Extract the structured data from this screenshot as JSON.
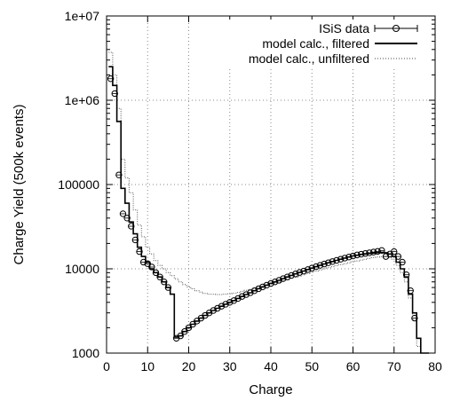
{
  "chart_data": {
    "type": "line",
    "xlabel": "Charge",
    "ylabel": "Charge Yield (500k events)",
    "xlim": [
      0,
      80
    ],
    "ylim": [
      1000,
      10000000
    ],
    "yscale": "log",
    "grid": true,
    "legend_position": "top-right",
    "x_ticks": [
      0,
      10,
      20,
      30,
      40,
      50,
      60,
      70,
      80
    ],
    "x_tick_labels": [
      "0",
      "10",
      "20",
      "30",
      "40",
      "50",
      "60",
      "70",
      "80"
    ],
    "y_ticks": [
      1000,
      10000,
      100000,
      1000000,
      10000000
    ],
    "y_tick_labels": [
      "1000",
      "10000",
      "100000",
      "1e+06",
      "1e+07"
    ],
    "series": [
      {
        "name": "ISiS data",
        "style": "points-errorbars",
        "x": [
          1,
          2,
          3,
          4,
          5,
          6,
          7,
          8,
          9,
          10,
          11,
          12,
          13,
          14,
          15,
          17,
          18,
          19,
          20,
          21,
          22,
          23,
          24,
          25,
          26,
          27,
          28,
          29,
          30,
          31,
          32,
          33,
          34,
          35,
          36,
          37,
          38,
          39,
          40,
          41,
          42,
          43,
          44,
          45,
          46,
          47,
          48,
          49,
          50,
          51,
          52,
          53,
          54,
          55,
          56,
          57,
          58,
          59,
          60,
          61,
          62,
          63,
          64,
          65,
          66,
          67,
          68,
          69,
          70,
          71,
          72,
          73,
          74,
          75
        ],
        "y": [
          1800000,
          1200000,
          130000,
          45000,
          40000,
          32000,
          22000,
          16000,
          12000,
          11500,
          10500,
          9000,
          8000,
          7000,
          6000,
          1500,
          1600,
          1800,
          2000,
          2200,
          2400,
          2600,
          2800,
          3000,
          3200,
          3400,
          3600,
          3800,
          4000,
          4200,
          4450,
          4700,
          4950,
          5200,
          5500,
          5800,
          6100,
          6400,
          6700,
          7000,
          7300,
          7650,
          8000,
          8350,
          8700,
          9050,
          9400,
          9800,
          10200,
          10600,
          11000,
          11400,
          11800,
          12200,
          12600,
          13000,
          13400,
          13800,
          14200,
          14600,
          14900,
          15200,
          15500,
          15800,
          16100,
          16500,
          14000,
          15000,
          16000,
          14000,
          12000,
          8500,
          5500,
          2600
        ]
      },
      {
        "name": "model calc., filtered",
        "style": "steps-solid",
        "x": [
          0.5,
          1.5,
          2.5,
          3.5,
          4.5,
          5.5,
          6.5,
          7.5,
          8.5,
          9.5,
          10.5,
          11.5,
          12.5,
          13.5,
          14.5,
          15.5,
          16.5,
          17.5,
          18.5,
          19.5,
          20.5,
          21.5,
          22.5,
          23.5,
          24.5,
          25.5,
          26.5,
          27.5,
          28.5,
          29.5,
          30.5,
          31.5,
          32.5,
          33.5,
          34.5,
          35.5,
          36.5,
          37.5,
          38.5,
          39.5,
          40.5,
          41.5,
          42.5,
          43.5,
          44.5,
          45.5,
          46.5,
          47.5,
          48.5,
          49.5,
          50.5,
          51.5,
          52.5,
          53.5,
          54.5,
          55.5,
          56.5,
          57.5,
          58.5,
          59.5,
          60.5,
          61.5,
          62.5,
          63.5,
          64.5,
          65.5,
          66.5,
          67.5,
          68.5,
          69.5,
          70.5,
          71.5,
          72.5,
          73.5,
          74.5,
          75.5,
          76.5,
          77.5
        ],
        "y": [
          2500000,
          1500000,
          560000,
          90000,
          60000,
          36000,
          26000,
          18000,
          14000,
          12000,
          10000,
          9000,
          8000,
          7000,
          6000,
          5000,
          1550,
          1600,
          1800,
          2000,
          2200,
          2400,
          2600,
          2800,
          3000,
          3200,
          3400,
          3600,
          3800,
          4000,
          4200,
          4450,
          4700,
          4950,
          5200,
          5500,
          5800,
          6100,
          6400,
          6700,
          7000,
          7300,
          7650,
          8000,
          8350,
          8700,
          9050,
          9400,
          9800,
          10200,
          10600,
          11000,
          11400,
          11800,
          12200,
          12600,
          13000,
          13400,
          13800,
          14200,
          14500,
          14800,
          15000,
          15200,
          15400,
          15600,
          15700,
          15500,
          15000,
          14000,
          12000,
          10000,
          8000,
          5000,
          3000,
          1500,
          1000,
          1000
        ]
      },
      {
        "name": "model calc., unfiltered",
        "style": "steps-dotted",
        "x": [
          0.5,
          1.5,
          2.5,
          3.5,
          4.5,
          5.5,
          6.5,
          7.5,
          8.5,
          9.5,
          10.5,
          11.5,
          12.5,
          13.5,
          14.5,
          15.5,
          16.5,
          17.5,
          18.5,
          19.5,
          20.5,
          21.5,
          22.5,
          23.5,
          24.5,
          25.5,
          26.5,
          27.5,
          28.5,
          29.5,
          30.5,
          31.5,
          32.5,
          33.5,
          34.5,
          35.5,
          36.5,
          37.5,
          38.5,
          39.5,
          40.5,
          41.5,
          42.5,
          43.5,
          44.5,
          45.5,
          46.5,
          47.5,
          48.5,
          49.5,
          50.5,
          51.5,
          52.5,
          53.5,
          54.5,
          55.5,
          56.5,
          57.5,
          58.5,
          59.5,
          60.5,
          61.5,
          62.5,
          63.5,
          64.5,
          65.5,
          66.5,
          67.5,
          68.5,
          69.5,
          70.5,
          71.5,
          72.5,
          73.5,
          74.5,
          75.5,
          76.5,
          77.5
        ],
        "y": [
          3700000,
          2000000,
          800000,
          200000,
          120000,
          80000,
          50000,
          33000,
          24000,
          18000,
          15000,
          12500,
          11000,
          10000,
          9000,
          8300,
          7600,
          7000,
          6500,
          6100,
          5800,
          5500,
          5300,
          5100,
          5000,
          5000,
          4950,
          4950,
          5000,
          5050,
          5150,
          5250,
          5400,
          5550,
          5700,
          5850,
          6000,
          6200,
          6400,
          6600,
          6800,
          7000,
          7200,
          7450,
          7700,
          7950,
          8200,
          8500,
          8800,
          9100,
          9400,
          9700,
          10000,
          10300,
          10600,
          10900,
          11200,
          11500,
          11800,
          12100,
          12400,
          12700,
          13000,
          13300,
          13600,
          13800,
          13900,
          14000,
          13500,
          13000,
          11000,
          9000,
          7000,
          4500,
          2500,
          1200,
          1000,
          1000
        ]
      }
    ]
  }
}
